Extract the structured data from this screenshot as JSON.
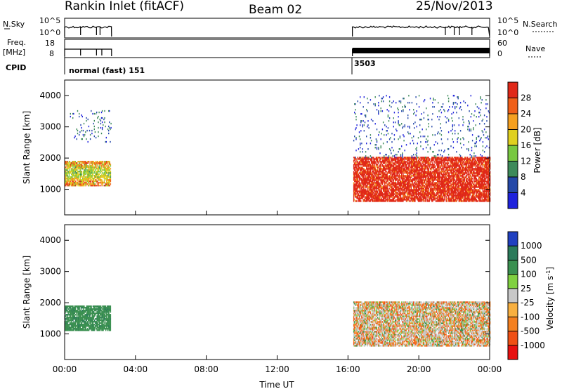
{
  "header": {
    "station": "Rankin Inlet (fitACF)",
    "beam": "Beam 02",
    "date": "25/Nov/2013"
  },
  "status_panel": {
    "nsky_label": "N.Sky",
    "nsearch_label": "N.Search",
    "nsky_ticks": [
      "10^5",
      "10^0"
    ],
    "nsky_right_ticks": [
      "10^5",
      "10^0"
    ],
    "freq_label": "Freq.",
    "freq_unit": "[MHz]",
    "freq_ticks": [
      "18",
      "8"
    ],
    "nave_label": "Nave",
    "nave_ticks": [
      "60",
      "0"
    ],
    "cpid_label": "CPID",
    "cpid_entries": [
      {
        "text": "normal (fast) 151",
        "start_hour": 0.0
      },
      {
        "text": "3503",
        "start_hour": 16.25
      }
    ]
  },
  "chart_data": [
    {
      "type": "heatmap",
      "name": "power",
      "xlabel": "",
      "ylabel": "Slant Range [km]",
      "x_range_hours": [
        0,
        24
      ],
      "ylim": [
        180,
        4500
      ],
      "yticks": [
        1000,
        2000,
        3000,
        4000
      ],
      "colorbar": {
        "label": "Power [dB]",
        "ticks": [
          "4",
          "8",
          "12",
          "16",
          "20",
          "24",
          "28"
        ],
        "colors": [
          "#1e22dc",
          "#2448a8",
          "#3d8a5a",
          "#78c840",
          "#e0d020",
          "#f5a020",
          "#f05f18",
          "#e02818"
        ]
      },
      "regions": [
        {
          "t": [
            0.0,
            2.6
          ],
          "r": [
            1100,
            1900
          ],
          "level": "medium"
        },
        {
          "t": [
            0.3,
            2.6
          ],
          "r": [
            2500,
            3500
          ],
          "level": "sparse-low"
        },
        {
          "t": [
            16.3,
            24.0
          ],
          "r": [
            600,
            2000
          ],
          "level": "high"
        },
        {
          "t": [
            16.3,
            24.0
          ],
          "r": [
            2000,
            4000
          ],
          "level": "sparse-low"
        }
      ]
    },
    {
      "type": "heatmap",
      "name": "velocity",
      "xlabel": "Time UT",
      "ylabel": "Slant Range [km]",
      "x_range_hours": [
        0,
        24
      ],
      "ylim": [
        180,
        4500
      ],
      "yticks": [
        1000,
        2000,
        3000,
        4000
      ],
      "xtick_labels": [
        "00:00",
        "04:00",
        "08:00",
        "12:00",
        "16:00",
        "20:00",
        "00:00"
      ],
      "colorbar": {
        "label": "Velocity [m s^-1]",
        "ticks": [
          "-1000",
          "-500",
          "-100",
          "-25",
          "25",
          "100",
          "500",
          "1000"
        ],
        "colors": [
          "#e81010",
          "#f05014",
          "#f48020",
          "#f8b040",
          "#c8c8c8",
          "#80d040",
          "#3a9050",
          "#2a7a5a",
          "#2040c0"
        ]
      },
      "regions": [
        {
          "t": [
            0.0,
            2.6
          ],
          "r": [
            1100,
            1900
          ],
          "level": "green"
        },
        {
          "t": [
            16.3,
            24.0
          ],
          "r": [
            600,
            2000
          ],
          "level": "mixed"
        }
      ]
    }
  ],
  "colors": {
    "axis": "#000000",
    "background": "#ffffff"
  }
}
